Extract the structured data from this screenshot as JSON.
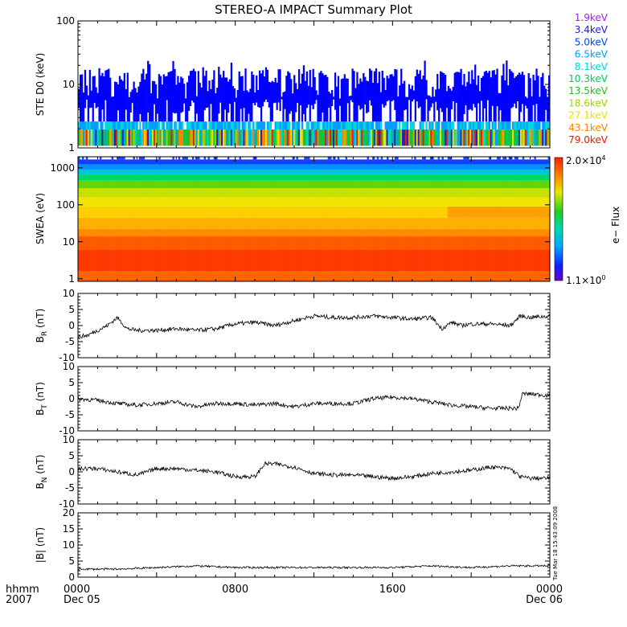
{
  "title": "STEREO-A IMPACT Summary Plot",
  "timestamp": "Tue Mar 18 15:43:09 2008",
  "x_axis": {
    "row1_label": "hhmm",
    "row2_label": "2007",
    "ticks": [
      {
        "t": 0,
        "top": "0000",
        "bottom": "Dec 05"
      },
      {
        "t": 8,
        "top": "0800",
        "bottom": ""
      },
      {
        "t": 16,
        "top": "1600",
        "bottom": ""
      },
      {
        "t": 24,
        "top": "0000",
        "bottom": "Dec 06"
      }
    ]
  },
  "ste_panel": {
    "ylabel": "STE D0 (keV)",
    "ytick_labels": [
      "1",
      "10",
      "100"
    ],
    "legend": [
      {
        "label": "1.9keV",
        "color": "#a020f0"
      },
      {
        "label": "3.4keV",
        "color": "#2020d0"
      },
      {
        "label": "5.0keV",
        "color": "#0040ff"
      },
      {
        "label": "6.5keV",
        "color": "#00a0ff"
      },
      {
        "label": "8.1keV",
        "color": "#00d8d8"
      },
      {
        "label": "10.3keV",
        "color": "#00c860"
      },
      {
        "label": "13.5keV",
        "color": "#20c020"
      },
      {
        "label": "18.6keV",
        "color": "#a0d000"
      },
      {
        "label": "27.1keV",
        "color": "#f0e000"
      },
      {
        "label": "43.1keV",
        "color": "#ff8000"
      },
      {
        "label": "79.0keV",
        "color": "#e02000"
      }
    ]
  },
  "swea_panel": {
    "ylabel": "SWEA (eV)",
    "ytick_labels": [
      "1",
      "10",
      "100",
      "1000"
    ],
    "colorbar_label": "e− Flux",
    "colorbar_max": "2.0×10",
    "colorbar_max_exp": "4",
    "colorbar_min": "1.1×10",
    "colorbar_min_exp": "0"
  },
  "chart_data": [
    {
      "type": "heatmap",
      "title": "STEREO-A IMPACT Summary Plot",
      "xlabel": "",
      "ylabel": "STE D0 (keV)",
      "x_range_hours": [
        0,
        24
      ],
      "ylim": [
        1,
        100
      ],
      "yscale": "log",
      "series": [
        {
          "name": "1.9keV"
        },
        {
          "name": "3.4keV"
        },
        {
          "name": "5.0keV"
        },
        {
          "name": "6.5keV"
        },
        {
          "name": "8.1keV"
        },
        {
          "name": "10.3keV"
        },
        {
          "name": "13.5keV"
        },
        {
          "name": "18.6keV"
        },
        {
          "name": "27.1keV"
        },
        {
          "name": "43.1keV"
        },
        {
          "name": "79.0keV"
        }
      ]
    },
    {
      "type": "heatmap",
      "ylabel": "SWEA (eV)",
      "x_range_hours": [
        0,
        24
      ],
      "ylim": [
        1,
        2000
      ],
      "yscale": "log",
      "colorbar_range": [
        1.1,
        20000
      ]
    },
    {
      "type": "line",
      "ylabel": "B_R (nT)",
      "ylim": [
        -10,
        10
      ],
      "yticks": [
        -10,
        -5,
        0,
        5,
        10
      ],
      "x_hours": [
        0,
        0.5,
        1,
        1.5,
        2,
        2.5,
        3,
        3.5,
        4,
        5,
        6,
        7,
        8,
        9,
        10,
        11,
        12,
        13,
        14,
        15,
        16,
        17,
        18,
        18.5,
        19,
        19.5,
        20,
        21,
        22,
        22.5,
        23,
        24
      ],
      "values": [
        -3.5,
        -3,
        -1.5,
        0,
        2.5,
        -1,
        -1.5,
        -1.5,
        -1.5,
        -1,
        -1.5,
        -1,
        0.5,
        1,
        0,
        1.5,
        3,
        2.5,
        2.5,
        3,
        2.5,
        2,
        2.5,
        -1,
        1,
        0,
        0.5,
        0.5,
        0,
        3,
        2.5,
        3
      ]
    },
    {
      "type": "line",
      "ylabel": "B_T (nT)",
      "ylim": [
        -10,
        10
      ],
      "yticks": [
        -10,
        -5,
        0,
        5,
        10
      ],
      "x_hours": [
        0,
        1,
        1.5,
        2,
        3,
        4,
        5,
        6,
        7,
        8,
        9,
        10,
        11,
        12,
        13,
        14,
        15,
        16,
        17,
        18,
        19,
        20,
        21,
        22,
        22.4,
        22.6,
        23,
        24
      ],
      "values": [
        0,
        -0.5,
        -1,
        -1.5,
        -2,
        -1.5,
        -1,
        -2.5,
        -1.5,
        -1.5,
        -2,
        -1.5,
        -2.5,
        -1.5,
        -1.5,
        -1.5,
        0,
        0.5,
        0,
        -1,
        -2,
        -2.5,
        -3,
        -3,
        -3,
        1.5,
        1.5,
        1
      ]
    },
    {
      "type": "line",
      "ylabel": "B_N (nT)",
      "ylim": [
        -10,
        10
      ],
      "yticks": [
        -10,
        -5,
        0,
        5,
        10
      ],
      "x_hours": [
        0,
        1,
        2,
        3,
        4,
        5,
        6,
        7,
        8,
        9,
        9.5,
        10,
        11,
        12,
        13,
        14,
        15,
        16,
        17,
        18,
        19,
        20,
        21,
        22,
        22.5,
        23,
        24
      ],
      "values": [
        1,
        1,
        0,
        -1,
        1,
        1,
        0.5,
        0,
        -1.5,
        -1.5,
        2.5,
        2.5,
        1.5,
        -0.5,
        -1,
        -1,
        -1.5,
        -2,
        -1.5,
        -0.5,
        0,
        0.5,
        1.5,
        1,
        -1.5,
        -2,
        -2
      ]
    },
    {
      "type": "line",
      "ylabel": "|B| (nT)",
      "ylim": [
        0,
        20
      ],
      "yticks": [
        0,
        5,
        10,
        15,
        20
      ],
      "x_hours": [
        0,
        2,
        4,
        6,
        8,
        10,
        12,
        14,
        16,
        18,
        20,
        22,
        24
      ],
      "values": [
        2.5,
        2.5,
        3,
        3.5,
        3,
        3,
        3,
        3,
        3,
        3.5,
        3,
        3.5,
        3.5
      ]
    }
  ]
}
